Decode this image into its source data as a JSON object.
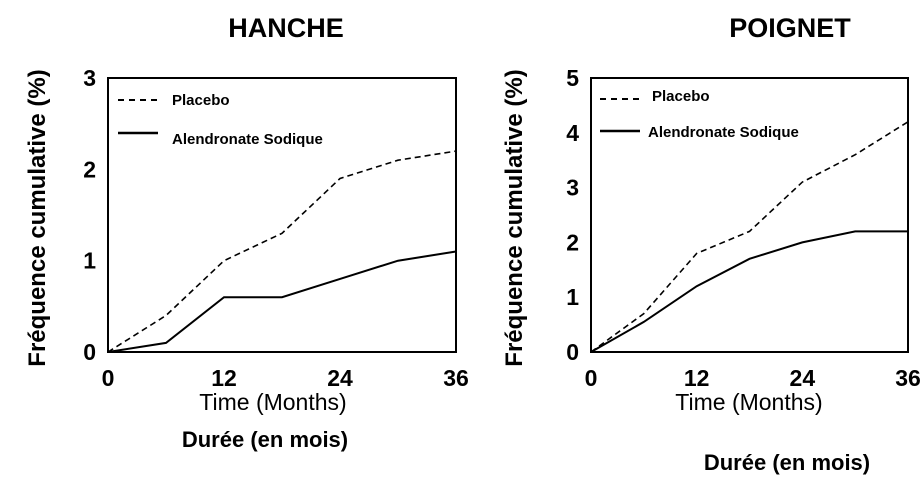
{
  "chart_data": [
    {
      "type": "line",
      "title": "HANCHE",
      "ylabel": "Fréquence cumulative (%)",
      "xlabel": "Time (Months)",
      "xlabel_secondary": "Durée (en mois)",
      "xlim": [
        0,
        36
      ],
      "ylim": [
        0,
        3
      ],
      "xticks": [
        0,
        12,
        24,
        36
      ],
      "yticks": [
        0,
        1,
        2,
        3
      ],
      "grid": false,
      "legend_position": "top-left",
      "series": [
        {
          "name": "Placebo",
          "style": "dashed",
          "x": [
            0,
            6,
            12,
            18,
            24,
            30,
            36
          ],
          "y": [
            0,
            0.4,
            1.0,
            1.3,
            1.9,
            2.1,
            2.2
          ]
        },
        {
          "name": "Alendronate Sodique",
          "style": "solid",
          "x": [
            0,
            6,
            12,
            18,
            24,
            30,
            36
          ],
          "y": [
            0,
            0.1,
            0.6,
            0.6,
            0.8,
            1.0,
            1.1
          ]
        }
      ]
    },
    {
      "type": "line",
      "title": "POIGNET",
      "ylabel": "Fréquence cumulative (%)",
      "xlabel": "Time (Months)",
      "xlabel_secondary": "Durée (en mois)",
      "xlim": [
        0,
        36
      ],
      "ylim": [
        0,
        5
      ],
      "xticks": [
        0,
        12,
        24,
        36
      ],
      "yticks": [
        0,
        1,
        2,
        3,
        4,
        5
      ],
      "grid": false,
      "legend_position": "top-left",
      "series": [
        {
          "name": "Placebo",
          "style": "dashed",
          "x": [
            0,
            6,
            12,
            18,
            24,
            30,
            36
          ],
          "y": [
            0,
            0.7,
            1.8,
            2.2,
            3.1,
            3.6,
            4.2
          ]
        },
        {
          "name": "Alendronate Sodique",
          "style": "solid",
          "x": [
            0,
            6,
            12,
            18,
            24,
            30,
            36
          ],
          "y": [
            0,
            0.55,
            1.2,
            1.7,
            2.0,
            2.2,
            2.2
          ]
        }
      ]
    }
  ]
}
